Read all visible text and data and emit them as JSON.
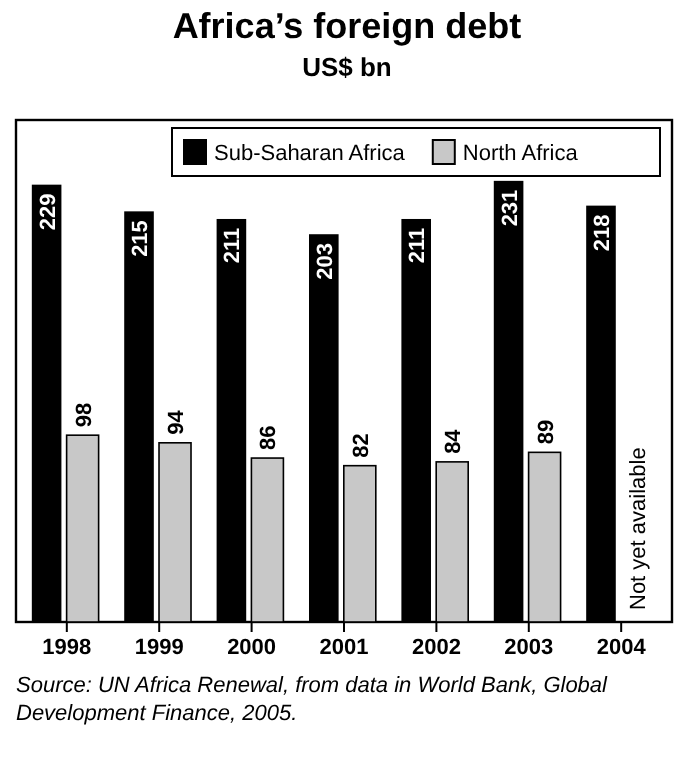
{
  "chart_data": {
    "type": "bar",
    "title": "Africa’s foreign debt",
    "subtitle": "US$ bn",
    "categories": [
      "1998",
      "1999",
      "2000",
      "2001",
      "2002",
      "2003",
      "2004"
    ],
    "series": [
      {
        "name": "Sub-Saharan Africa",
        "color": "#000000",
        "values": [
          229,
          215,
          211,
          203,
          211,
          231,
          218
        ]
      },
      {
        "name": "North Africa",
        "color": "#c8c8c8",
        "values": [
          98,
          94,
          86,
          82,
          84,
          89,
          null
        ]
      }
    ],
    "data_labels": true,
    "legend": "top right",
    "annotations": [
      {
        "text": "Not yet available",
        "x": "2004"
      },
      "Source: UN Africa Renewal, from data in World Bank, Global Development Finance, 2005."
    ]
  }
}
